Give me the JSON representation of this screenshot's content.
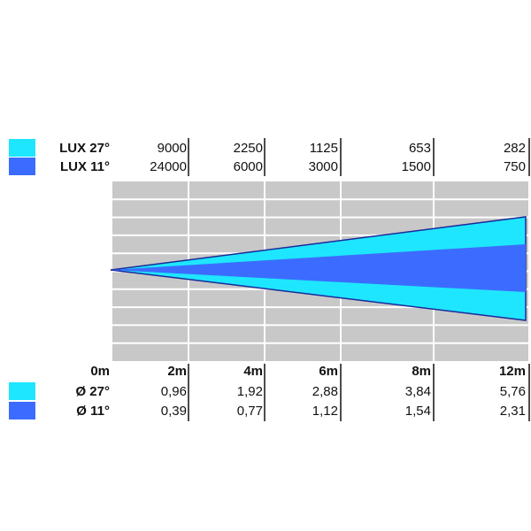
{
  "colors": {
    "beam_27": "#1ee6ff",
    "beam_11": "#3b6cff",
    "outline": "#1a2a9a",
    "grid_bg": "#c8c8c8",
    "grid_line": "#ffffff",
    "divider": "#111111",
    "text": "#111111"
  },
  "lux_table": {
    "rows": [
      {
        "label": "LUX 27°",
        "color_key": "beam_27",
        "values": [
          "9000",
          "2250",
          "1125",
          "653",
          "282"
        ]
      },
      {
        "label": "LUX 11°",
        "color_key": "beam_11",
        "values": [
          "24000",
          "6000",
          "3000",
          "1500",
          "750"
        ]
      }
    ]
  },
  "distance_table": {
    "distances": [
      "0m",
      "2m",
      "4m",
      "6m",
      "8m",
      "12m"
    ],
    "rows": [
      {
        "label": "Ø 27°",
        "color_key": "beam_27",
        "values": [
          "0,96",
          "1,92",
          "2,88",
          "3,84",
          "5,76"
        ]
      },
      {
        "label": "Ø 11°",
        "color_key": "beam_11",
        "values": [
          "0,39",
          "0,77",
          "1,12",
          "1,54",
          "2,31"
        ]
      }
    ]
  }
}
